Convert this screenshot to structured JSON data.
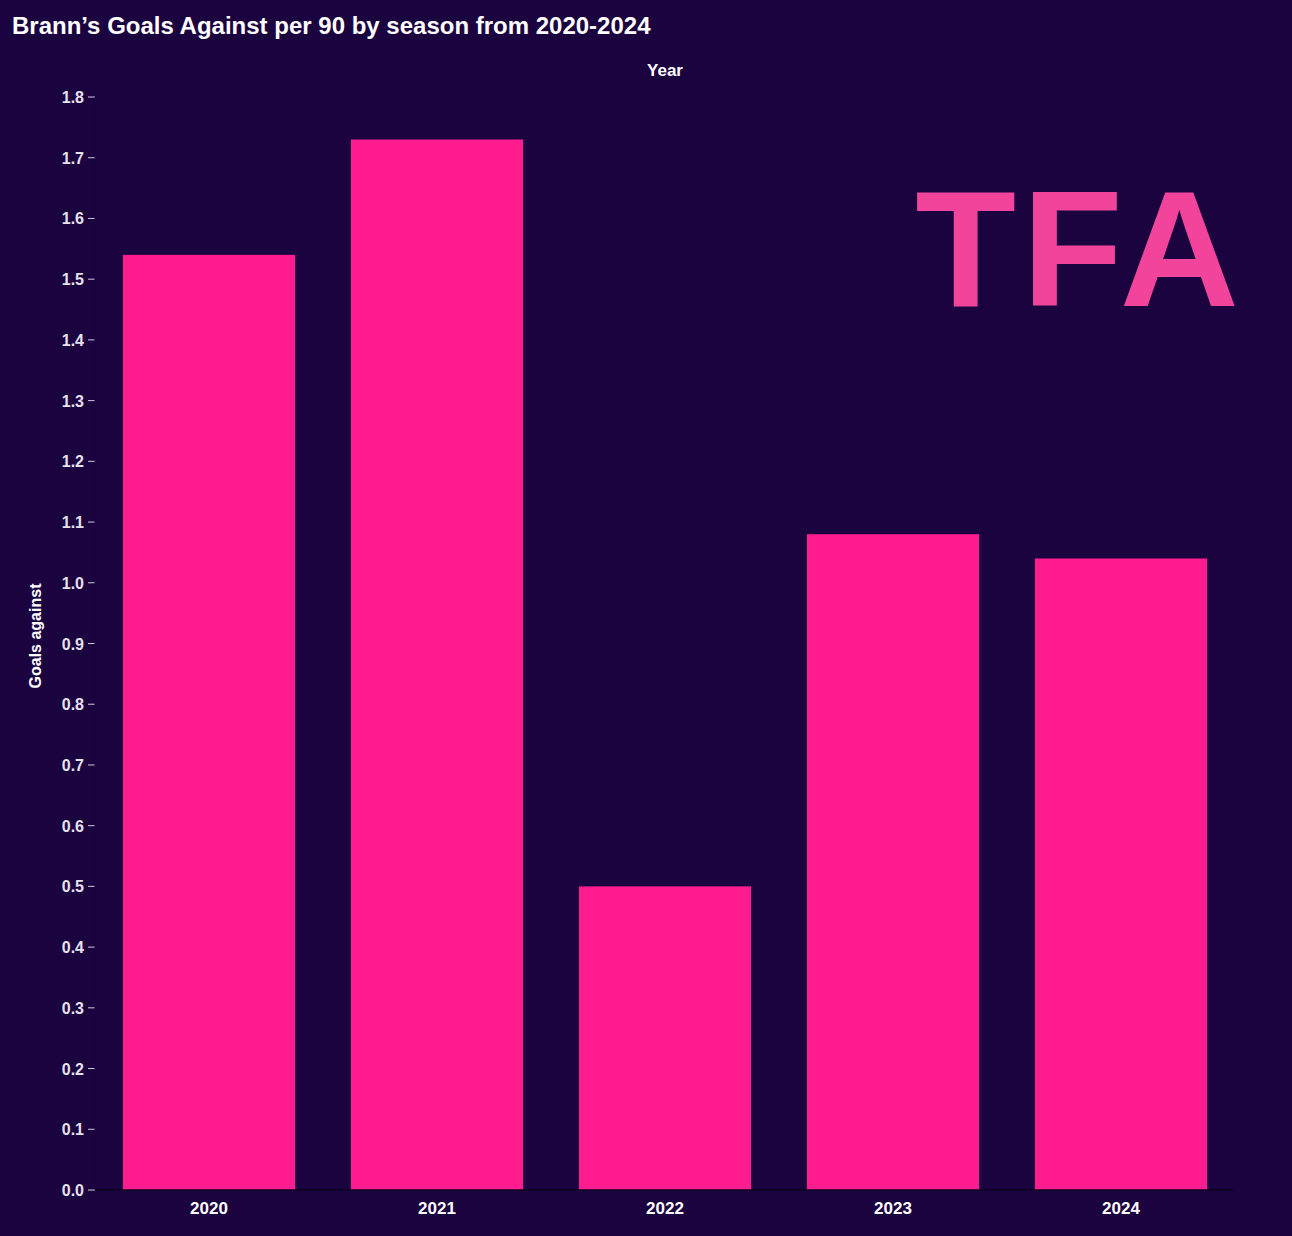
{
  "chart_data": {
    "type": "bar",
    "title": "Brann’s Goals Against per 90 by season from 2020-2024",
    "x_label": "Year",
    "y_label": "Goals against",
    "logo": "TFA",
    "categories": [
      "2020",
      "2021",
      "2022",
      "2023",
      "2024"
    ],
    "values": [
      1.54,
      1.73,
      0.5,
      1.08,
      1.04
    ],
    "color": "#ff1c8e",
    "ylim": [
      0,
      1.8
    ],
    "yticks": [
      {
        "value": 0,
        "label": "0.0"
      },
      0.1,
      0.2,
      0.3,
      0.4,
      0.5,
      0.6,
      0.7,
      0.8,
      0.9,
      {
        "value": 1,
        "label": "1.0"
      },
      1.1,
      1.2,
      1.3,
      1.4,
      1.5,
      1.6,
      1.7,
      1.8
    ],
    "grid": false
  }
}
